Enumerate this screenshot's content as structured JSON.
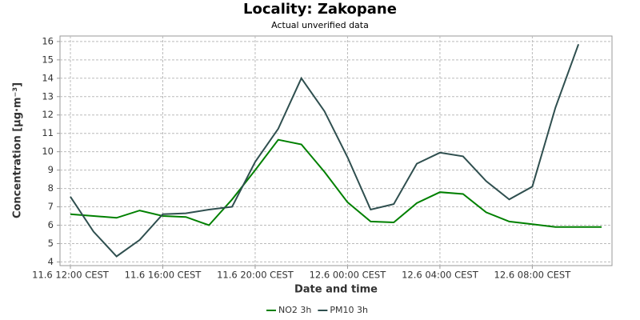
{
  "chart_data": {
    "type": "line",
    "title": "Locality: Zakopane",
    "subtitle": "Actual unverified data",
    "x_label": "Date and time",
    "y_label": "Concentration [µg·m⁻³]",
    "categories": [
      "11.6 12:00 CEST",
      null,
      null,
      null,
      "11.6 16:00 CEST",
      null,
      null,
      null,
      "11.6 20:00 CEST",
      null,
      null,
      null,
      "12.6 00:00 CEST",
      null,
      null,
      null,
      "12.6 04:00 CEST",
      null,
      null,
      null,
      "12.6 08:00 CEST",
      null,
      null,
      null
    ],
    "series": [
      {
        "name": "NO2 3h",
        "color": "#008000",
        "values": [
          6.6,
          6.5,
          6.4,
          6.8,
          6.5,
          6.45,
          6.0,
          7.4,
          9.0,
          10.65,
          10.4,
          8.9,
          7.25,
          6.2,
          6.15,
          7.2,
          7.8,
          7.7,
          6.7,
          6.2,
          6.05,
          5.9,
          5.9,
          5.9
        ]
      },
      {
        "name": "PM10 3h",
        "color": "#2f4f4f",
        "values": [
          7.55,
          5.65,
          4.3,
          5.2,
          6.6,
          6.65,
          6.85,
          7.0,
          9.45,
          11.25,
          14.0,
          12.2,
          9.7,
          6.85,
          7.15,
          9.35,
          9.95,
          9.75,
          8.4,
          7.4,
          8.1,
          12.4,
          15.85,
          null
        ]
      }
    ],
    "ylim": [
      3.8,
      16.3
    ],
    "yticks": [
      4,
      5,
      6,
      7,
      8,
      9,
      10,
      11,
      12,
      13,
      14,
      15,
      16
    ],
    "grid": true,
    "legend": "bottom"
  }
}
